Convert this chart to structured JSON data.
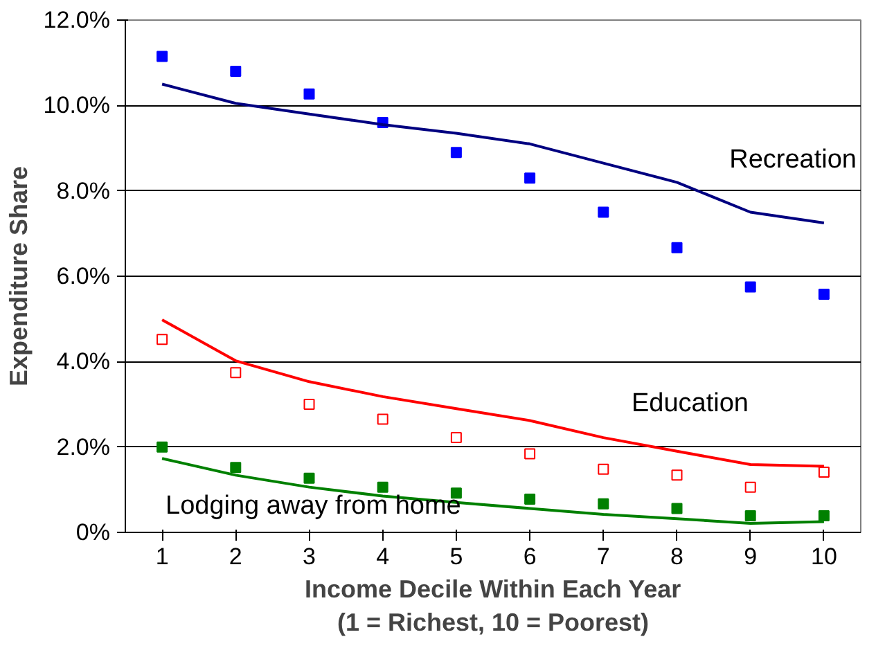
{
  "chart_data": {
    "type": "scatter",
    "xlabel": "Income Decile Within Each Year\n(1 = Richest, 10 = Poorest)",
    "ylabel": "Expenditure Share",
    "x": [
      1,
      2,
      3,
      4,
      5,
      6,
      7,
      8,
      9,
      10
    ],
    "xlim": [
      0.5,
      10.5
    ],
    "xticks": [
      1,
      2,
      3,
      4,
      5,
      6,
      7,
      8,
      9,
      10
    ],
    "ylim": [
      0,
      12
    ],
    "yticks": [
      {
        "value": 0,
        "label": "0%"
      },
      {
        "value": 2,
        "label": "2.0%"
      },
      {
        "value": 4,
        "label": "4.0%"
      },
      {
        "value": 6,
        "label": "6.0%"
      },
      {
        "value": 8,
        "label": "8.0%"
      },
      {
        "value": 10,
        "label": "10.0%"
      },
      {
        "value": 12,
        "label": "12.0%"
      }
    ],
    "grid": "y",
    "series": [
      {
        "marker": "square",
        "color": "#0000ff",
        "values": [
          11.15,
          10.8,
          10.27,
          9.6,
          8.9,
          8.3,
          7.5,
          6.67,
          5.75,
          5.58
        ]
      },
      {
        "type": "line",
        "color": "#000080",
        "values": [
          10.5,
          10.05,
          9.8,
          9.55,
          9.35,
          9.1,
          8.65,
          8.2,
          7.5,
          7.25
        ]
      },
      {
        "marker": "square",
        "color": "#ff0000",
        "values": [
          4.52,
          3.74,
          3.0,
          2.65,
          2.22,
          1.84,
          1.48,
          1.34,
          1.06,
          1.41
        ]
      },
      {
        "type": "line",
        "color": "#ff0000",
        "values": [
          4.98,
          4.02,
          3.53,
          3.18,
          2.9,
          2.62,
          2.22,
          1.9,
          1.59,
          1.55
        ]
      },
      {
        "marker": "square",
        "color": "#008000",
        "values": [
          2.0,
          1.52,
          1.27,
          1.06,
          0.92,
          0.78,
          0.67,
          0.56,
          0.39,
          0.39
        ]
      },
      {
        "type": "line",
        "color": "#008000",
        "values": [
          1.73,
          1.34,
          1.06,
          0.85,
          0.7,
          0.56,
          0.42,
          0.32,
          0.21,
          0.25
        ]
      }
    ],
    "annotations": [
      "Recreation",
      "Education",
      "Lodging away from home"
    ]
  }
}
